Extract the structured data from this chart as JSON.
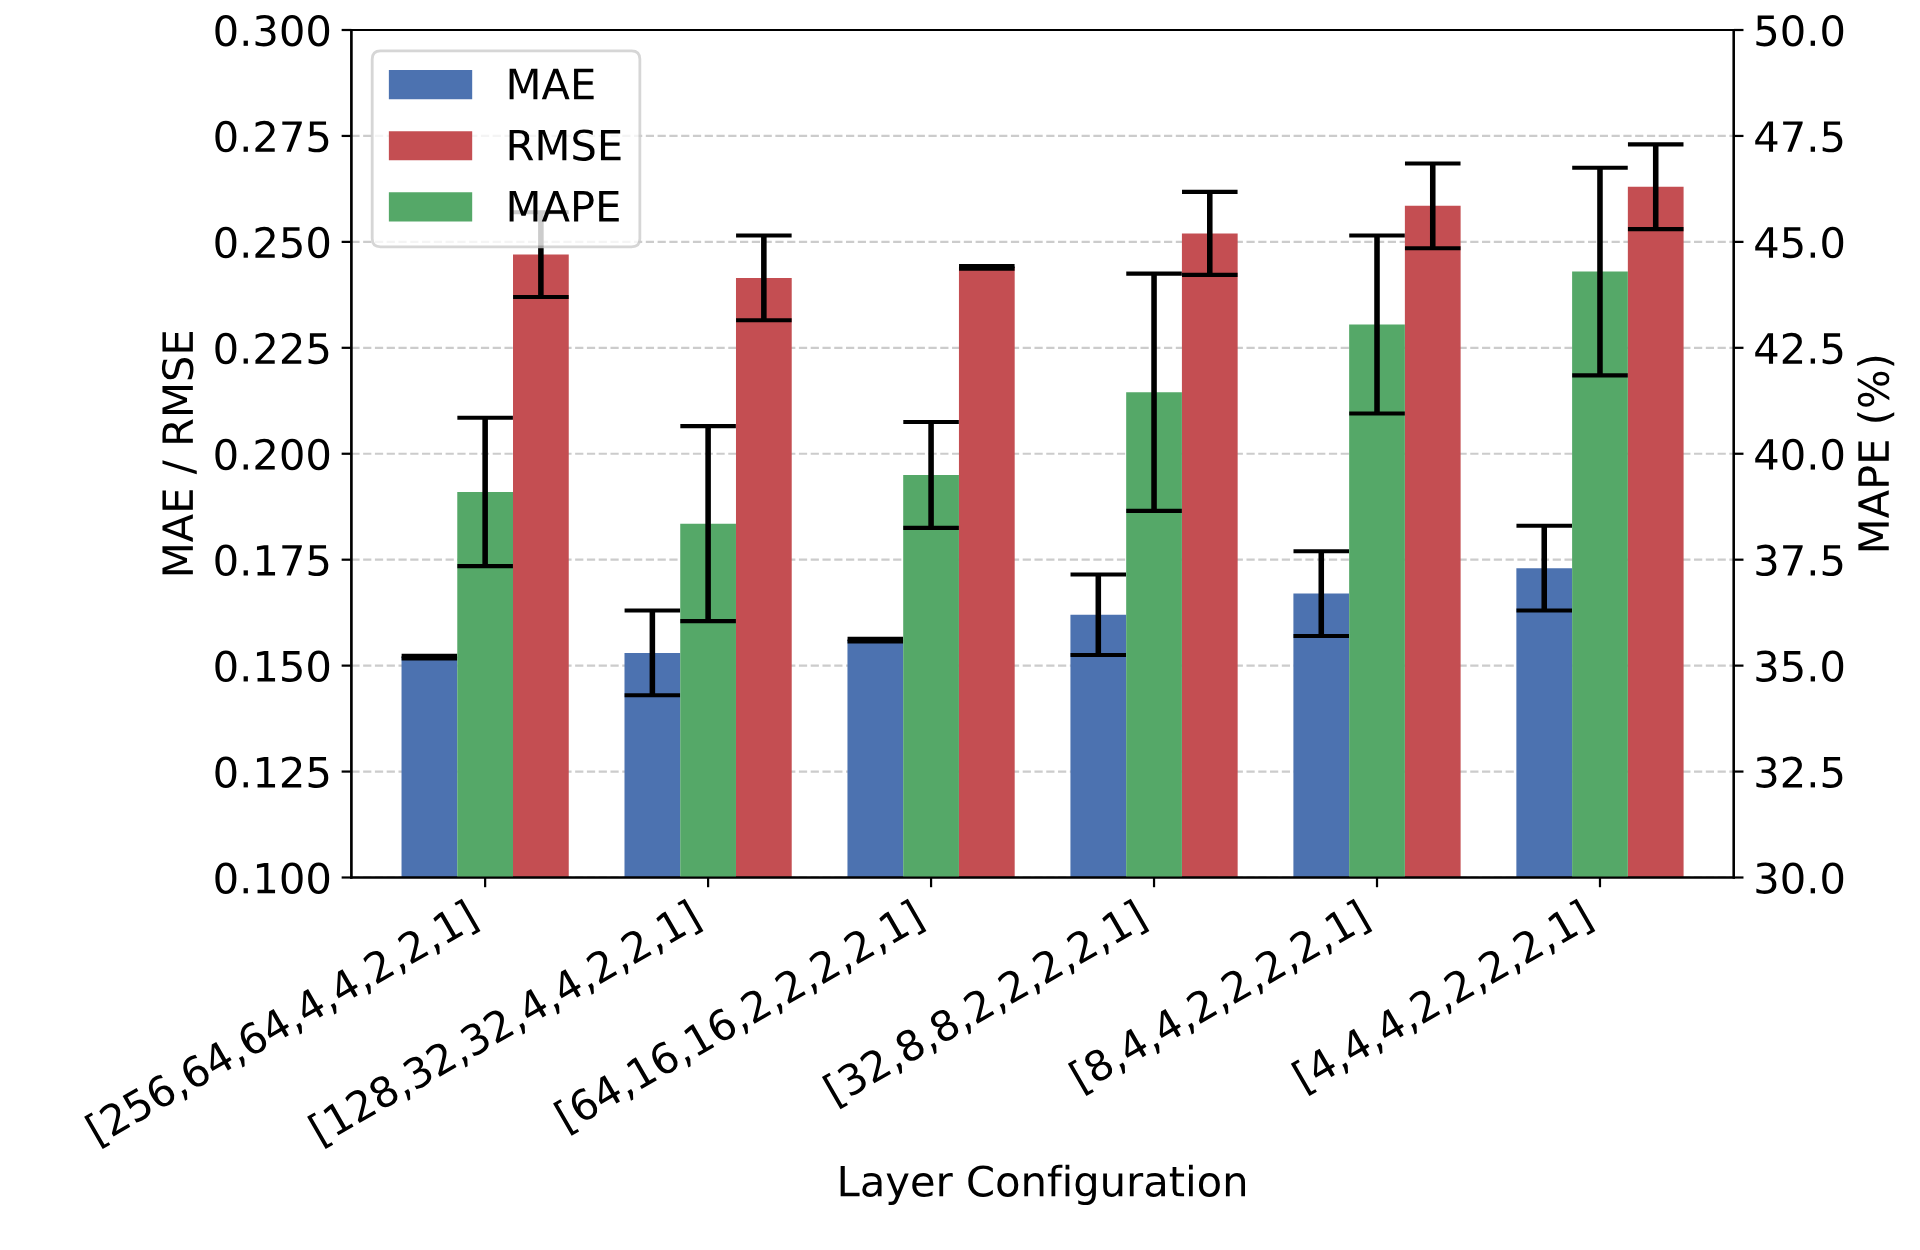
{
  "chart_data": {
    "type": "bar",
    "xlabel": "Layer Configuration",
    "ylabel": "MAE / RMSE",
    "y2label": "MAPE (%)",
    "categories": [
      "[256,64,64,4,4,2,2,1]",
      "[128,32,32,4,4,2,2,1]",
      "[64,16,16,2,2,2,2,1]",
      "[32,8,8,2,2,2,2,1]",
      "[8,4,4,2,2,2,2,1]",
      "[4,4,4,2,2,2,2,1]"
    ],
    "series": [
      {
        "name": "MAE",
        "color": "#4c72b0",
        "values": [
          0.152,
          0.153,
          0.156,
          0.162,
          0.167,
          0.173
        ],
        "errors": [
          0.0003,
          0.01,
          0.0003,
          0.0095,
          0.01,
          0.01
        ]
      },
      {
        "name": "MAPE",
        "color": "#55a868",
        "axis": "y2",
        "values": [
          39.1,
          38.35,
          39.5,
          41.45,
          43.05,
          44.3
        ],
        "errors": [
          1.75,
          2.3,
          1.25,
          2.8,
          2.1,
          2.45
        ]
      },
      {
        "name": "RMSE",
        "color": "#c44e52",
        "values": [
          0.247,
          0.2415,
          0.244,
          0.252,
          0.2585,
          0.263
        ],
        "errors": [
          0.01,
          0.01,
          0.0003,
          0.0098,
          0.01,
          0.01
        ]
      }
    ],
    "ylim": [
      0.1,
      0.3
    ],
    "yticks": [
      {
        "value": 0.1,
        "label": "0.100"
      },
      {
        "value": 0.125,
        "label": "0.125"
      },
      {
        "value": 0.15,
        "label": "0.150"
      },
      {
        "value": 0.175,
        "label": "0.175"
      },
      {
        "value": 0.2,
        "label": "0.200"
      },
      {
        "value": 0.225,
        "label": "0.225"
      },
      {
        "value": 0.25,
        "label": "0.250"
      },
      {
        "value": 0.275,
        "label": "0.275"
      },
      {
        "value": 0.3,
        "label": "0.300"
      }
    ],
    "y2lim": [
      30,
      50
    ],
    "y2ticks": [
      {
        "value": 30,
        "label": "30.0"
      },
      {
        "value": 32.5,
        "label": "32.5"
      },
      {
        "value": 35,
        "label": "35.0"
      },
      {
        "value": 37.5,
        "label": "37.5"
      },
      {
        "value": 40,
        "label": "40.0"
      },
      {
        "value": 42.5,
        "label": "42.5"
      },
      {
        "value": 45,
        "label": "45.0"
      },
      {
        "value": 47.5,
        "label": "47.5"
      },
      {
        "value": 50,
        "label": "50.0"
      }
    ],
    "grid": "y",
    "legend": "top left"
  }
}
